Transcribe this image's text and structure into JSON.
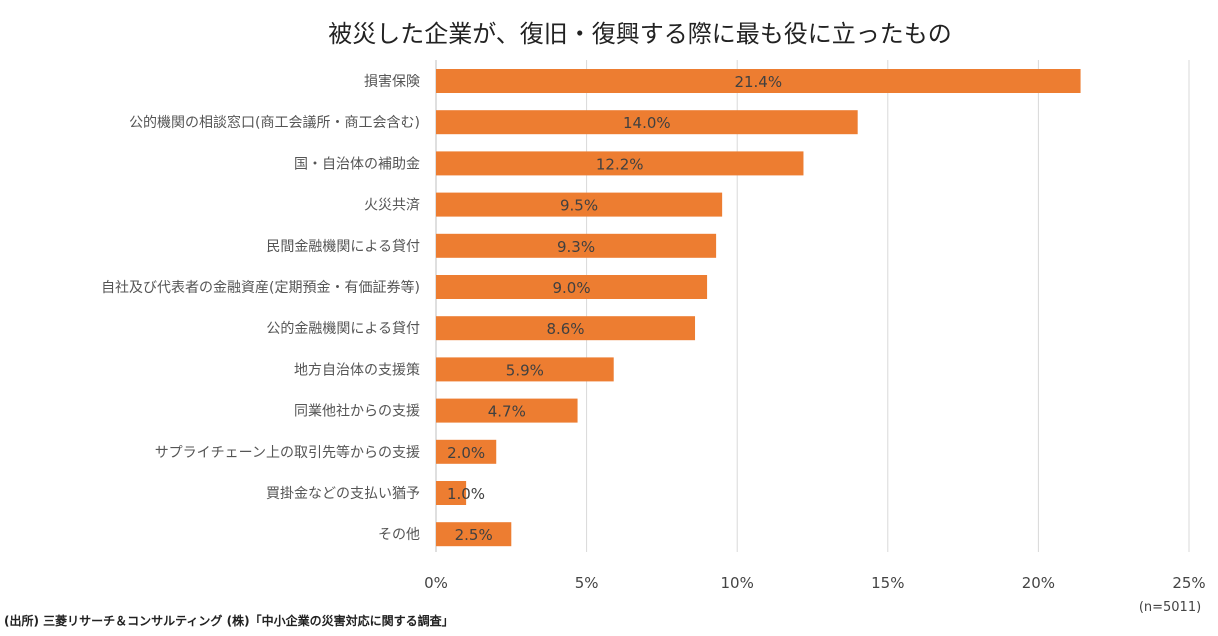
{
  "chart_data": {
    "type": "bar",
    "orientation": "horizontal",
    "title": "被災した企業が、復旧・復興する際に最も役に立ったもの",
    "categories": [
      "損害保険",
      "公的機関の相談窓口(商工会議所・商工会含む)",
      "国・自治体の補助金",
      "火災共済",
      "民間金融機関による貸付",
      "自社及び代表者の金融資産(定期預金・有価証券等)",
      "公的金融機関による貸付",
      "地方自治体の支援策",
      "同業他社からの支援",
      "サプライチェーン上の取引先等からの支援",
      "買掛金などの支払い猶予",
      "その他"
    ],
    "values": [
      21.4,
      14.0,
      12.2,
      9.5,
      9.3,
      9.0,
      8.6,
      5.9,
      4.7,
      2.0,
      1.0,
      2.5
    ],
    "data_labels": [
      "21.4%",
      "14.0%",
      "12.2%",
      "9.5%",
      "9.3%",
      "9.0%",
      "8.6%",
      "5.9%",
      "4.7%",
      "2.0%",
      "1.0%",
      "2.5%"
    ],
    "xlim": [
      0,
      25
    ],
    "x_ticks": [
      "0%",
      "5%",
      "10%",
      "15%",
      "20%",
      "25%"
    ],
    "grid": true,
    "bar_color": "#ED7D31",
    "note": "(n=5011)",
    "source": "(出所) 三菱リサーチ＆コンサルティング (株)「中小企業の災害対応に関する調査」"
  }
}
